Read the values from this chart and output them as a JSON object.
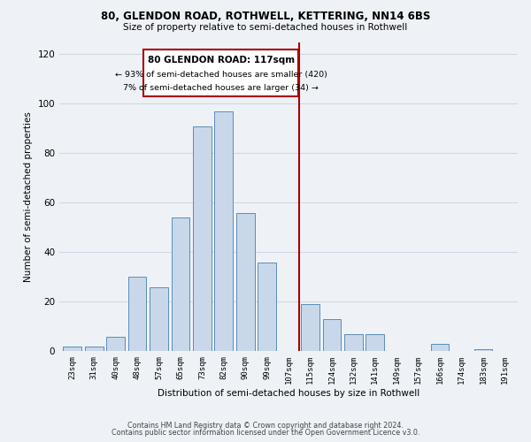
{
  "title1": "80, GLENDON ROAD, ROTHWELL, KETTERING, NN14 6BS",
  "title2": "Size of property relative to semi-detached houses in Rothwell",
  "xlabel": "Distribution of semi-detached houses by size in Rothwell",
  "ylabel": "Number of semi-detached properties",
  "bar_labels": [
    "23sqm",
    "31sqm",
    "40sqm",
    "48sqm",
    "57sqm",
    "65sqm",
    "73sqm",
    "82sqm",
    "90sqm",
    "99sqm",
    "107sqm",
    "115sqm",
    "124sqm",
    "132sqm",
    "141sqm",
    "149sqm",
    "157sqm",
    "166sqm",
    "174sqm",
    "183sqm",
    "191sqm"
  ],
  "bar_values": [
    2,
    2,
    6,
    30,
    26,
    54,
    91,
    97,
    56,
    36,
    0,
    19,
    13,
    7,
    7,
    0,
    0,
    3,
    0,
    1,
    0
  ],
  "bar_color": "#c8d8ea",
  "bar_edge_color": "#5b8db8",
  "annotation_title": "80 GLENDON ROAD: 117sqm",
  "annotation_line1": "← 93% of semi-detached houses are smaller (420)",
  "annotation_line2": "7% of semi-detached houses are larger (34) →",
  "annotation_box_color": "#ffffff",
  "annotation_box_edge": "#aa0000",
  "property_line_color": "#aa0000",
  "property_line_bin": 11,
  "footer1": "Contains HM Land Registry data © Crown copyright and database right 2024.",
  "footer2": "Contains public sector information licensed under the Open Government Licence v3.0.",
  "background_color": "#eef2f7",
  "grid_color": "#d0d8e4",
  "ylim": [
    0,
    125
  ],
  "yticks": [
    0,
    20,
    40,
    60,
    80,
    100,
    120
  ]
}
